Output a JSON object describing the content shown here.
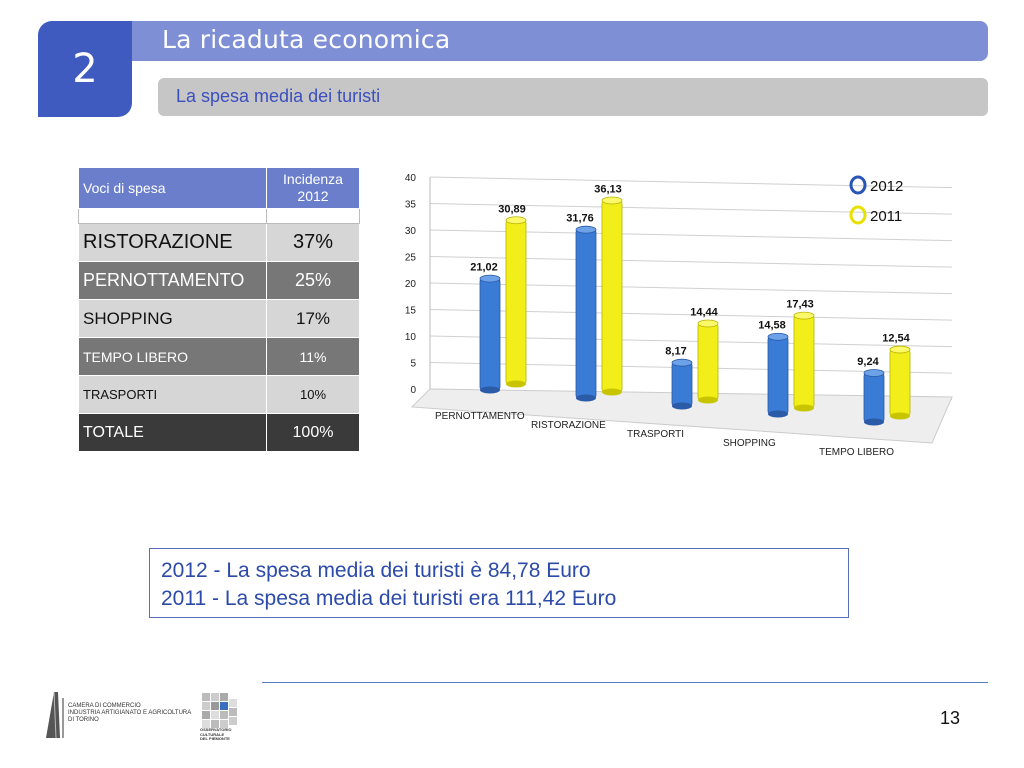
{
  "header": {
    "section_number": "2",
    "title": "La ricaduta economica",
    "subtitle": "La spesa media dei turisti"
  },
  "table": {
    "col1_header": "Voci di spesa",
    "col2_header_line1": "Incidenza",
    "col2_header_line2": "2012",
    "rows": [
      {
        "label": "RISTORAZIONE",
        "value": "37%"
      },
      {
        "label": "PERNOTTAMENTO",
        "value": "25%"
      },
      {
        "label": "SHOPPING",
        "value": "17%"
      },
      {
        "label": "TEMPO LIBERO",
        "value": "11%"
      },
      {
        "label": "TRASPORTI",
        "value": "10%"
      },
      {
        "label": "TOTALE",
        "value": "100%"
      }
    ]
  },
  "chart_data": {
    "type": "bar",
    "categories": [
      "PERNOTTAMENTO",
      "RISTORAZIONE",
      "TRASPORTI",
      "SHOPPING",
      "TEMPO LIBERO"
    ],
    "series": [
      {
        "name": "2012",
        "values": [
          21.02,
          31.76,
          8.17,
          14.58,
          9.24
        ],
        "labels": [
          "21,02",
          "31,76",
          "8,17",
          "14,58",
          "9,24"
        ],
        "color": "#3a7bd5"
      },
      {
        "name": "2011",
        "values": [
          30.89,
          36.13,
          14.44,
          17.43,
          12.54
        ],
        "labels": [
          "30,89",
          "36,13",
          "14,44",
          "17,43",
          "12,54"
        ],
        "color": "#f2ee1a"
      }
    ],
    "yticks": [
      "0",
      "5",
      "10",
      "15",
      "20",
      "25",
      "30",
      "35",
      "40"
    ],
    "ylim": [
      0,
      40
    ],
    "legend": "top-right",
    "grid": true
  },
  "summary": {
    "line1": "2012 - La spesa media dei turisti è 84,78 Euro",
    "line2": "2011 - La spesa media dei turisti era 111,42 Euro"
  },
  "footer": {
    "page_number": "13",
    "logo1_line1": "CAMERA DI COMMERCIO",
    "logo1_line2": "INDUSTRIA ARTIGIANATO E AGRICOLTURA",
    "logo1_line3": "DI TORINO",
    "logo2_line1": "OSSERVATORIO",
    "logo2_line2": "CULTURALE",
    "logo2_line3": "DEL PIEMONTE"
  }
}
